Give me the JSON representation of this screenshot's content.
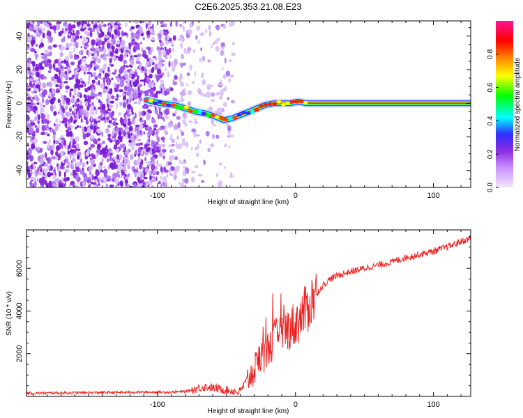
{
  "chart_data": [
    {
      "type": "heatmap",
      "title": "C2E6.2025.353.21.08.E23",
      "xlabel": "Height of straight line (km)",
      "ylabel": "Frequency (Hz)",
      "xlim": [
        -195,
        127
      ],
      "ylim": [
        -50,
        49
      ],
      "xticks": [
        -100,
        0,
        100
      ],
      "yticks": [
        -40,
        -20,
        0,
        20,
        40
      ],
      "colorbar": {
        "label": "Normalized spectral amplitude",
        "range": [
          0,
          1
        ],
        "ticks": [
          0.0,
          0.2,
          0.4,
          0.6,
          0.8
        ],
        "tick_labels": [
          "0.0",
          "0.2",
          "0.4",
          "0.6",
          "0.8"
        ],
        "colormap": [
          "#f0e0ff",
          "#c890ff",
          "#8a2be2",
          "#3030ff",
          "#00ffff",
          "#00ff00",
          "#ffff00",
          "#ff8000",
          "#ff0000",
          "#ff1493"
        ]
      },
      "signal_trace": {
        "x": [
          -108,
          -98,
          -88,
          -80,
          -72,
          -65,
          -58,
          -52,
          -46,
          -40,
          -34,
          -28,
          -22,
          -16,
          -10,
          -4,
          2,
          8,
          127
        ],
        "y": [
          2,
          0,
          -1,
          -3,
          -5,
          -6,
          -8,
          -10,
          -9,
          -7,
          -5,
          -3,
          -1,
          0,
          0,
          0,
          1,
          0,
          0
        ]
      }
    },
    {
      "type": "line",
      "title": "",
      "xlabel": "Height of straight line (km)",
      "ylabel": "SNR (10 * v/v)",
      "xlim": [
        -195,
        127
      ],
      "ylim": [
        0,
        7800
      ],
      "xticks": [
        -100,
        0,
        100
      ],
      "yticks": [
        2000,
        4000,
        6000
      ],
      "line_color": "#ee2222",
      "series": [
        {
          "name": "SNR",
          "x": [
            -195,
            -180,
            -160,
            -140,
            -120,
            -100,
            -90,
            -80,
            -75,
            -70,
            -65,
            -60,
            -55,
            -50,
            -45,
            -42,
            -40,
            -35,
            -30,
            -25,
            -20,
            -15,
            -10,
            -5,
            0,
            5,
            10,
            15,
            20,
            25,
            30,
            40,
            50,
            60,
            70,
            80,
            90,
            100,
            110,
            120,
            127
          ],
          "y": [
            150,
            160,
            170,
            180,
            190,
            200,
            200,
            230,
            300,
            400,
            450,
            400,
            350,
            300,
            250,
            200,
            250,
            800,
            1200,
            1800,
            2200,
            2700,
            3000,
            3200,
            3400,
            3800,
            4300,
            4800,
            5200,
            5500,
            5650,
            5850,
            6000,
            6150,
            6300,
            6500,
            6650,
            6800,
            7000,
            7250,
            7400
          ]
        }
      ]
    }
  ]
}
